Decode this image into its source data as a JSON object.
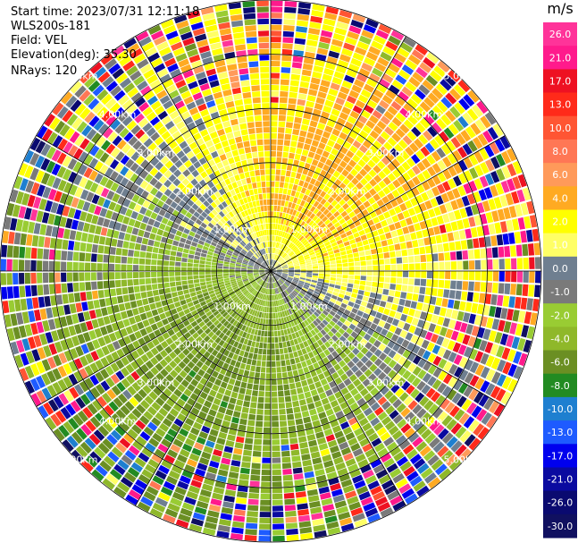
{
  "header": {
    "start_time": "Start time: 2023/07/31 12:11:18",
    "station": "WLS200s-181",
    "field": "Field: VEL",
    "elevation": "Elevation(deg): 35.30",
    "nrays": "NRays: 120"
  },
  "chart_data": {
    "type": "heatmap",
    "projection": "polar PPI",
    "field": "VEL",
    "units": "m/s",
    "n_rays": 120,
    "elevation_deg": 35.3,
    "range_rings_km": [
      1.0,
      2.0,
      3.0,
      4.0,
      5.0
    ],
    "range_ring_labels": [
      "1.00km",
      "2.00km",
      "3.00km",
      "4.00km",
      "5.00km"
    ],
    "max_range_km": 5.0,
    "colorbar": {
      "title": "m/s",
      "tick_labels": [
        "26.0",
        "21.0",
        "17.0",
        "13.0",
        "10.0",
        "8.0",
        "6.0",
        "4.0",
        "2.0",
        "1.0",
        "0.0",
        "-1.0",
        "-2.0",
        "-4.0",
        "-6.0",
        "-8.0",
        "-10.0",
        "-13.0",
        "-17.0",
        "-21.0",
        "-26.0",
        "-30.0"
      ],
      "bands": [
        {
          "from": 26.0,
          "to": 30.0,
          "color": "#ff3399"
        },
        {
          "from": 21.0,
          "to": 26.0,
          "color": "#ff1a8c"
        },
        {
          "from": 17.0,
          "to": 21.0,
          "color": "#ee1122"
        },
        {
          "from": 13.0,
          "to": 17.0,
          "color": "#ff2a1a"
        },
        {
          "from": 10.0,
          "to": 13.0,
          "color": "#ff5533"
        },
        {
          "from": 8.0,
          "to": 10.0,
          "color": "#ff7755"
        },
        {
          "from": 6.0,
          "to": 8.0,
          "color": "#ff9a5a"
        },
        {
          "from": 4.0,
          "to": 6.0,
          "color": "#ffaa22"
        },
        {
          "from": 2.0,
          "to": 4.0,
          "color": "#ffff00"
        },
        {
          "from": 1.0,
          "to": 2.0,
          "color": "#ffff66"
        },
        {
          "from": 0.0,
          "to": 1.0,
          "color": "#6f7f90"
        },
        {
          "from": -1.0,
          "to": 0.0,
          "color": "#7a7a7a"
        },
        {
          "from": -2.0,
          "to": -1.0,
          "color": "#99cc33"
        },
        {
          "from": -4.0,
          "to": -2.0,
          "color": "#8fb82a"
        },
        {
          "from": -6.0,
          "to": -4.0,
          "color": "#6b8f23"
        },
        {
          "from": -8.0,
          "to": -6.0,
          "color": "#228b22"
        },
        {
          "from": -10.0,
          "to": -8.0,
          "color": "#1e7fd0"
        },
        {
          "from": -13.0,
          "to": -10.0,
          "color": "#1e5bff"
        },
        {
          "from": -17.0,
          "to": -13.0,
          "color": "#0000ee"
        },
        {
          "from": -21.0,
          "to": -17.0,
          "color": "#0a0aa0"
        },
        {
          "from": -26.0,
          "to": -21.0,
          "color": "#0a0a70"
        },
        {
          "from": -30.0,
          "to": -26.0,
          "color": "#101060"
        }
      ]
    }
  }
}
